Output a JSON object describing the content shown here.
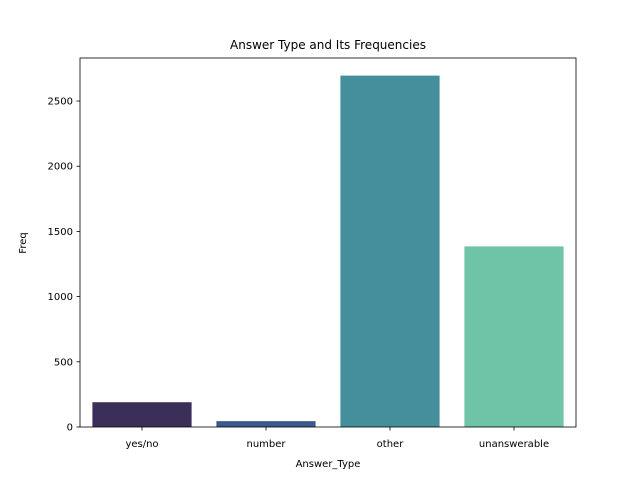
{
  "chart_data": {
    "type": "bar",
    "title": "Answer Type and Its Frequencies",
    "xlabel": "Answer_Type",
    "ylabel": "Freq",
    "categories": [
      "yes/no",
      "number",
      "other",
      "unanswerable"
    ],
    "values": [
      190,
      45,
      2695,
      1385
    ],
    "colors": [
      "#3b2f5a",
      "#3d5a8f",
      "#448f9b",
      "#6fc3a7"
    ],
    "ylim": [
      0,
      2830
    ],
    "yticks": [
      0,
      500,
      1000,
      1500,
      2000,
      2500
    ],
    "grid": false,
    "legend": "none"
  }
}
